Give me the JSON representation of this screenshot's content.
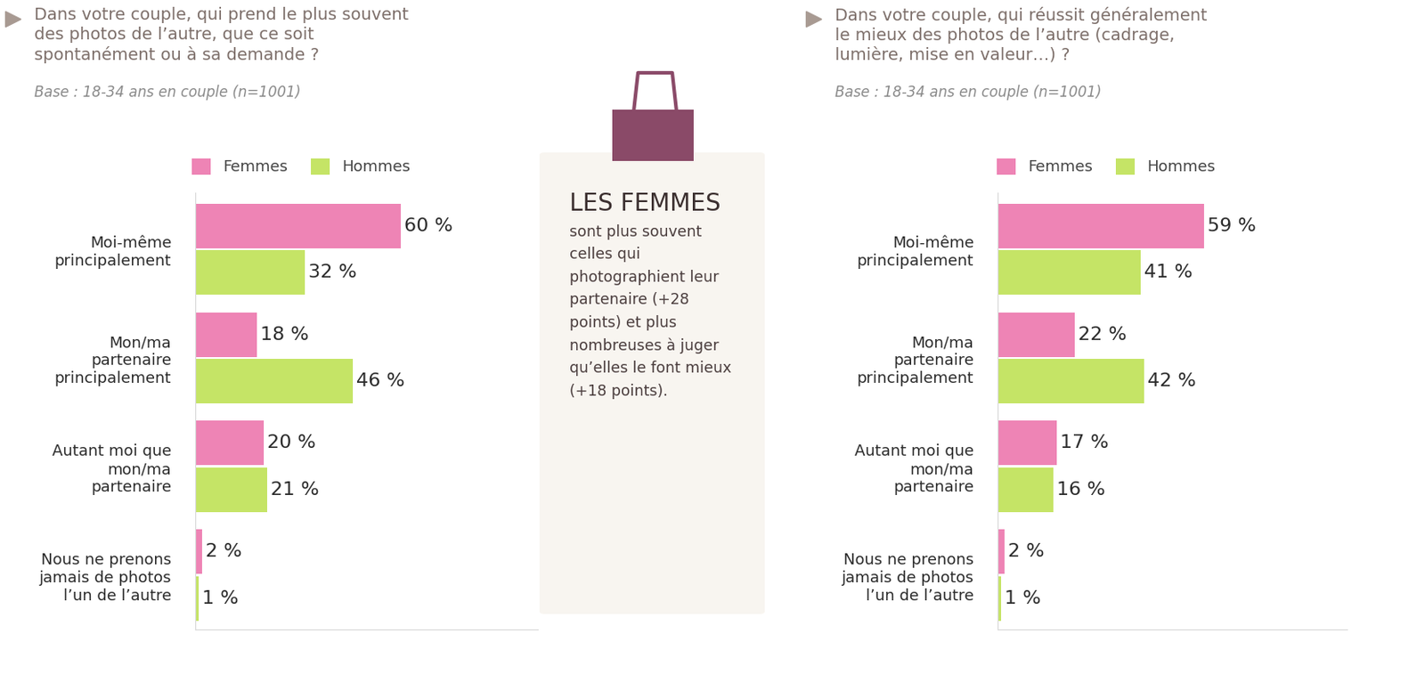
{
  "chart_data": [
    {
      "type": "bar",
      "orientation": "horizontal",
      "title": "Dans votre couple, qui prend le plus souvent des photos de l’autre, que ce soit spontanément ou à sa demande ?",
      "subtitle": "Base : 18-34 ans en couple (n=1001)",
      "categories": [
        "Moi-même principalement",
        "Mon/ma partenaire principalement",
        "Autant moi que mon/ma partenaire",
        "Nous ne prenons jamais de photos l’un de l’autre"
      ],
      "series": [
        {
          "name": "Femmes",
          "color": "#ee84b5",
          "values": [
            60,
            18,
            20,
            2
          ],
          "value_labels": [
            "60 %",
            "18 %",
            "20 %",
            "2 %"
          ]
        },
        {
          "name": "Hommes",
          "color": "#c5e466",
          "values": [
            32,
            46,
            21,
            1
          ],
          "value_labels": [
            "32 %",
            "46 %",
            "21 %",
            "1 %"
          ]
        }
      ],
      "xlim": [
        0,
        100
      ],
      "grid": false,
      "legend": "upper center",
      "data_labels": true,
      "tick_labels": "y"
    },
    {
      "type": "bar",
      "orientation": "horizontal",
      "title": "Dans votre couple, qui réussit généralement le mieux des photos de l’autre (cadrage, lumière, mise en valeur…) ?",
      "subtitle": "Base : 18-34 ans en couple (n=1001)",
      "categories": [
        "Moi-même principalement",
        "Mon/ma partenaire principalement",
        "Autant moi que mon/ma partenaire",
        "Nous ne prenons jamais de photos l’un de l’autre"
      ],
      "series": [
        {
          "name": "Femmes",
          "color": "#ee84b5",
          "values": [
            59,
            22,
            17,
            2
          ],
          "value_labels": [
            "59 %",
            "22 %",
            "17 %",
            "2 %"
          ]
        },
        {
          "name": "Hommes",
          "color": "#c5e466",
          "values": [
            41,
            42,
            16,
            1
          ],
          "value_labels": [
            "41 %",
            "42 %",
            "16 %",
            "1 %"
          ]
        }
      ],
      "xlim": [
        0,
        100
      ],
      "grid": false,
      "legend": "upper center",
      "data_labels": true,
      "tick_labels": "y"
    }
  ],
  "callout": {
    "title": "LES FEMMES",
    "text": "sont plus souvent celles qui photographient leur partenaire (+28 points) et plus nombreuses à juger qu’elles le font mieux (+18 points)."
  }
}
